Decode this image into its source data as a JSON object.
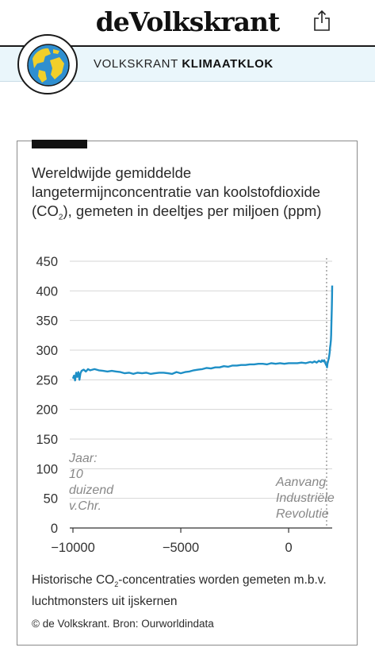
{
  "header": {
    "logo_text": "deVolkskrant",
    "share_icon": "share-icon"
  },
  "section": {
    "prefix": "VOLKSKRANT",
    "name": "KLIMAATKLOK",
    "icon": "globe-icon"
  },
  "card": {
    "title_part1": "Wereldwijde gemiddelde langetermijnconcentratie van koolstofdioxide (CO",
    "title_sub": "2",
    "title_part2": "), gemeten in deeltjes per miljoen (ppm)",
    "caption_part1": "Historische CO",
    "caption_sub": "2",
    "caption_part2": "-concentraties worden gemeten m.b.v. luchtmonsters uit ijskernen",
    "credit": "© de Volkskrant. Bron: Ourworldindata"
  },
  "chart_data": {
    "type": "line",
    "title": "Wereldwijde gemiddelde langetermijnconcentratie van koolstofdioxide (CO2), gemeten in deeltjes per miljoen (ppm)",
    "xlabel": "",
    "ylabel": "",
    "xlim": [
      -10000,
      2019
    ],
    "ylim": [
      0,
      450
    ],
    "x_ticks": [
      {
        "value": -10000,
        "label": "−10000"
      },
      {
        "value": -5000,
        "label": "−5000"
      },
      {
        "value": 0,
        "label": "0"
      }
    ],
    "y_ticks": [
      0,
      50,
      100,
      150,
      200,
      250,
      300,
      350,
      400,
      450
    ],
    "grid": "horizontal",
    "line_color": "#1e8fc6",
    "grid_color": "#d6d6d6",
    "annotations": [
      {
        "x": -10000,
        "lines": [
          "Jaar:",
          "10",
          "duizend",
          "v.Chr."
        ],
        "position": "start"
      },
      {
        "x": 1760,
        "lines": [
          "Aanvang",
          "Industriële",
          "Revolutie"
        ],
        "position": "marker",
        "style": "dotted-vertical-line"
      }
    ],
    "series": [
      {
        "x": [
          -10000,
          -9950,
          -9900,
          -9850,
          -9800,
          -9750,
          -9700,
          -9650,
          -9600,
          -9500,
          -9400,
          -9300,
          -9200,
          -9000,
          -8800,
          -8600,
          -8400,
          -8200,
          -8000,
          -7800,
          -7600,
          -7400,
          -7200,
          -7000,
          -6800,
          -6600,
          -6400,
          -6200,
          -6000,
          -5800,
          -5600,
          -5400,
          -5200,
          -5000,
          -4800,
          -4600,
          -4400,
          -4200,
          -4000,
          -3800,
          -3600,
          -3400,
          -3200,
          -3000,
          -2800,
          -2600,
          -2400,
          -2200,
          -2000,
          -1800,
          -1600,
          -1400,
          -1200,
          -1000,
          -800,
          -600,
          -400,
          -200,
          0,
          200,
          400,
          600,
          800,
          1000,
          1100,
          1200,
          1300,
          1400,
          1500,
          1550,
          1600,
          1650,
          1700,
          1750,
          1760,
          1780,
          1800,
          1820,
          1840,
          1860,
          1880,
          1900,
          1920,
          1940,
          1950,
          1960,
          1970,
          1980,
          1990,
          2000,
          2010,
          2019
        ],
        "values": [
          252,
          257,
          249,
          262,
          255,
          263,
          250,
          261,
          265,
          267,
          264,
          268,
          266,
          268,
          266,
          265,
          264,
          265,
          264,
          263,
          261,
          262,
          260,
          262,
          261,
          262,
          260,
          261,
          262,
          262,
          261,
          260,
          263,
          261,
          263,
          264,
          266,
          267,
          268,
          270,
          269,
          271,
          271,
          273,
          272,
          274,
          274,
          275,
          275,
          276,
          276,
          277,
          277,
          276,
          278,
          277,
          278,
          277,
          278,
          278,
          278,
          279,
          278,
          280,
          279,
          281,
          279,
          282,
          280,
          283,
          281,
          283,
          278,
          274,
          276,
          271,
          277,
          280,
          283,
          286,
          290,
          296,
          304,
          310,
          313,
          317,
          326,
          339,
          354,
          369,
          389,
          409
        ]
      }
    ]
  }
}
